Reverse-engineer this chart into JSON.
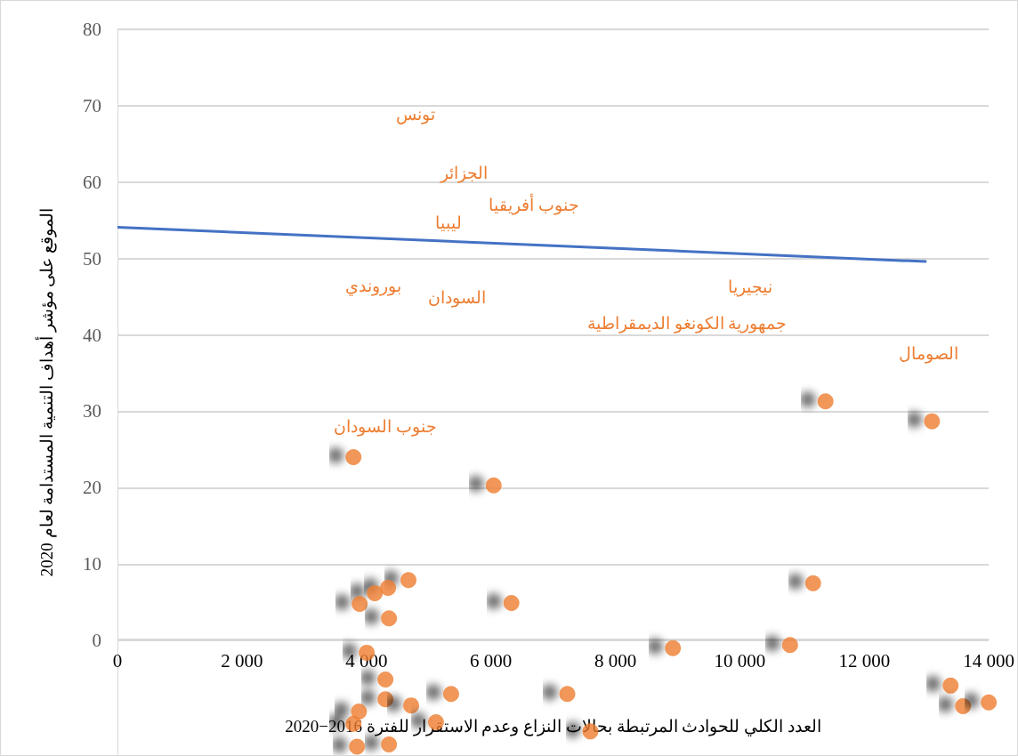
{
  "chart_data": {
    "type": "scatter",
    "xlabel": "العدد الكلي للحوادث المرتبطة بحالات النزاع وعدم الاستقرار للفترة 2016−2020",
    "ylabel": "الموقع على مؤشر أهداف التنمية المستدامة لعام 2020",
    "series": [
      {
        "color": "#ed7d31",
        "marker": "circle",
        "x": [
          11377,
          13088,
          3792,
          6045,
          4676,
          4348,
          4135,
          3892,
          4363,
          6330,
          11178,
          4006,
          8925,
          10807,
          4306,
          5361,
          7228,
          4306,
          4719,
          13387,
          13587,
          14000,
          3880,
          3792,
          5118,
          7599,
          3849,
          4363
        ],
        "values": [
          31.3,
          28.7,
          24.0,
          20.3,
          7.9,
          6.9,
          6.2,
          4.8,
          2.9,
          4.9,
          7.5,
          -1.6,
          -1.0,
          -0.6,
          -5.1,
          -7.0,
          -7.0,
          -7.7,
          -8.5,
          -5.9,
          -8.6,
          -8.1,
          -9.3,
          -10.9,
          -10.7,
          -11.9,
          -13.9,
          -13.6
        ]
      },
      {
        "type": "line",
        "color": "#4472c4",
        "marker": "none",
        "line_style": "solid",
        "x": [
          0,
          13000
        ],
        "values": [
          54.1,
          49.6
        ]
      }
    ],
    "xlim": [
      0,
      14000
    ],
    "xticks": [
      0,
      {
        "value": 2000,
        "label": "2 000"
      },
      {
        "value": 4000,
        "label": "4 000"
      },
      {
        "value": 6000,
        "label": "6 000"
      },
      {
        "value": 8000,
        "label": "8 000"
      },
      {
        "value": 10000,
        "label": "10 000"
      },
      {
        "value": 12000,
        "label": "12 000"
      },
      {
        "value": 14000,
        "label": "14 000"
      }
    ],
    "ylim": [
      -15,
      80
    ],
    "yticks": [
      0,
      10,
      20,
      30,
      40,
      50,
      60,
      70,
      80
    ],
    "grid": "y",
    "annotations": [
      "تونس",
      "الجزائر",
      "جنوب أفريقيا",
      "ليبيا",
      "بوروندي",
      "السودان",
      "نيجيريا",
      "جمهورية الكونغو الديمقراطية",
      "الصومال",
      "جنوب السودان"
    ]
  }
}
